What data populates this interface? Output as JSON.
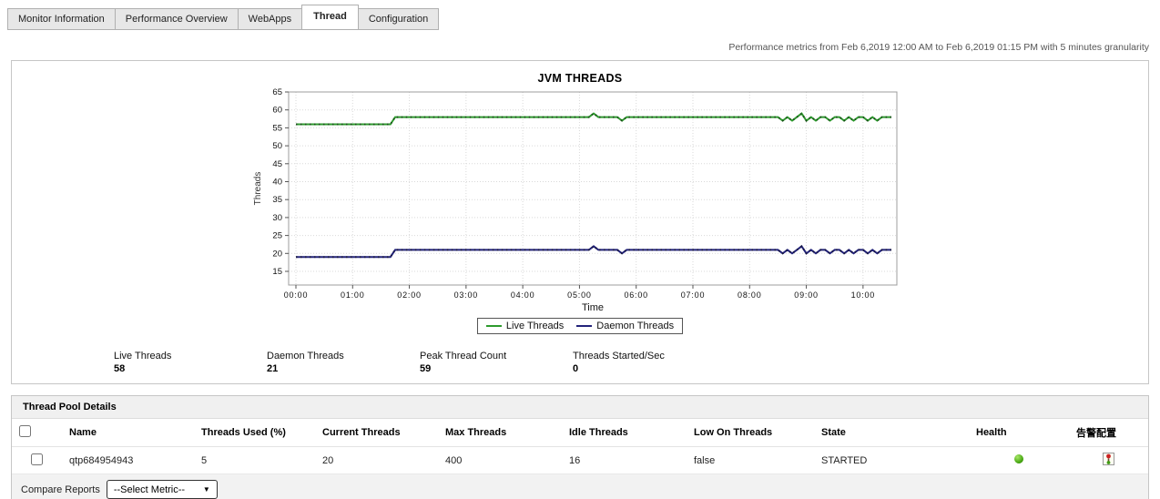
{
  "tabs": {
    "items": [
      {
        "label": "Monitor Information",
        "active": false
      },
      {
        "label": "Performance Overview",
        "active": false
      },
      {
        "label": "WebApps",
        "active": false
      },
      {
        "label": "Thread",
        "active": true
      },
      {
        "label": "Configuration",
        "active": false
      }
    ]
  },
  "header": {
    "note": "Performance metrics from Feb 6,2019 12:00 AM to Feb 6,2019 01:15 PM with 5 minutes granularity"
  },
  "chart_data": {
    "type": "line",
    "title": "JVM THREADS",
    "xlabel": "Time",
    "ylabel": "Threads",
    "ylim": [
      15,
      65
    ],
    "y_ticks": [
      15,
      20,
      25,
      30,
      35,
      40,
      45,
      50,
      55,
      60,
      65
    ],
    "x_ticks": [
      "00:00",
      "01:00",
      "02:00",
      "03:00",
      "04:00",
      "05:00",
      "06:00",
      "07:00",
      "08:00",
      "09:00",
      "10:00"
    ],
    "x_hours_max": 10.5,
    "grid": true,
    "legend_position": "bottom",
    "series": [
      {
        "name": "Live Threads",
        "color": "#2d9a2d",
        "points": [
          [
            0,
            56
          ],
          [
            1.6667,
            56
          ],
          [
            1.75,
            58
          ],
          [
            5.1667,
            58
          ],
          [
            5.25,
            59
          ],
          [
            5.3333,
            58
          ],
          [
            5.6667,
            58
          ],
          [
            5.75,
            57
          ],
          [
            5.8333,
            58
          ],
          [
            8.5,
            58
          ],
          [
            8.5833,
            57
          ],
          [
            8.6667,
            58
          ],
          [
            8.75,
            57
          ],
          [
            8.8333,
            58
          ],
          [
            8.9167,
            59
          ],
          [
            9.0,
            57
          ],
          [
            9.0833,
            58
          ],
          [
            9.1667,
            57
          ],
          [
            9.25,
            58
          ],
          [
            9.3333,
            58
          ],
          [
            9.4167,
            57
          ],
          [
            9.5,
            58
          ],
          [
            9.5833,
            58
          ],
          [
            9.6667,
            57
          ],
          [
            9.75,
            58
          ],
          [
            9.8333,
            57
          ],
          [
            9.9167,
            58
          ],
          [
            10.0,
            58
          ],
          [
            10.0833,
            57
          ],
          [
            10.1667,
            58
          ],
          [
            10.25,
            57
          ],
          [
            10.3333,
            58
          ],
          [
            10.4167,
            58
          ],
          [
            10.5,
            58
          ]
        ]
      },
      {
        "name": "Daemon Threads",
        "color": "#22227a",
        "points": [
          [
            0,
            19
          ],
          [
            1.6667,
            19
          ],
          [
            1.75,
            21
          ],
          [
            5.1667,
            21
          ],
          [
            5.25,
            22
          ],
          [
            5.3333,
            21
          ],
          [
            5.6667,
            21
          ],
          [
            5.75,
            20
          ],
          [
            5.8333,
            21
          ],
          [
            8.5,
            21
          ],
          [
            8.5833,
            20
          ],
          [
            8.6667,
            21
          ],
          [
            8.75,
            20
          ],
          [
            8.8333,
            21
          ],
          [
            8.9167,
            22
          ],
          [
            9.0,
            20
          ],
          [
            9.0833,
            21
          ],
          [
            9.1667,
            20
          ],
          [
            9.25,
            21
          ],
          [
            9.3333,
            21
          ],
          [
            9.4167,
            20
          ],
          [
            9.5,
            21
          ],
          [
            9.5833,
            21
          ],
          [
            9.6667,
            20
          ],
          [
            9.75,
            21
          ],
          [
            9.8333,
            20
          ],
          [
            9.9167,
            21
          ],
          [
            10.0,
            21
          ],
          [
            10.0833,
            20
          ],
          [
            10.1667,
            21
          ],
          [
            10.25,
            20
          ],
          [
            10.3333,
            21
          ],
          [
            10.4167,
            21
          ],
          [
            10.5,
            21
          ]
        ]
      }
    ]
  },
  "summary": {
    "stats": [
      {
        "label": "Live Threads",
        "value": "58"
      },
      {
        "label": "Daemon Threads",
        "value": "21"
      },
      {
        "label": "Peak Thread Count",
        "value": "59"
      },
      {
        "label": "Threads Started/Sec",
        "value": "0"
      }
    ]
  },
  "thread_pool": {
    "section_title": "Thread Pool Details",
    "columns": [
      "Name",
      "Threads Used  (%)",
      "Current Threads",
      "Max Threads",
      "Idle Threads",
      "Low On Threads",
      "State",
      "Health",
      "告警配置"
    ],
    "rows": [
      {
        "name": "qtp684954943",
        "threads_used_pct": "5",
        "current_threads": "20",
        "max_threads": "400",
        "idle_threads": "16",
        "low_on_threads": "false",
        "state": "STARTED",
        "health": "good",
        "health_color": "#44a410"
      }
    ],
    "footer": {
      "compare_reports_label": "Compare Reports",
      "metric_select_value": "--Select Metric--"
    }
  }
}
